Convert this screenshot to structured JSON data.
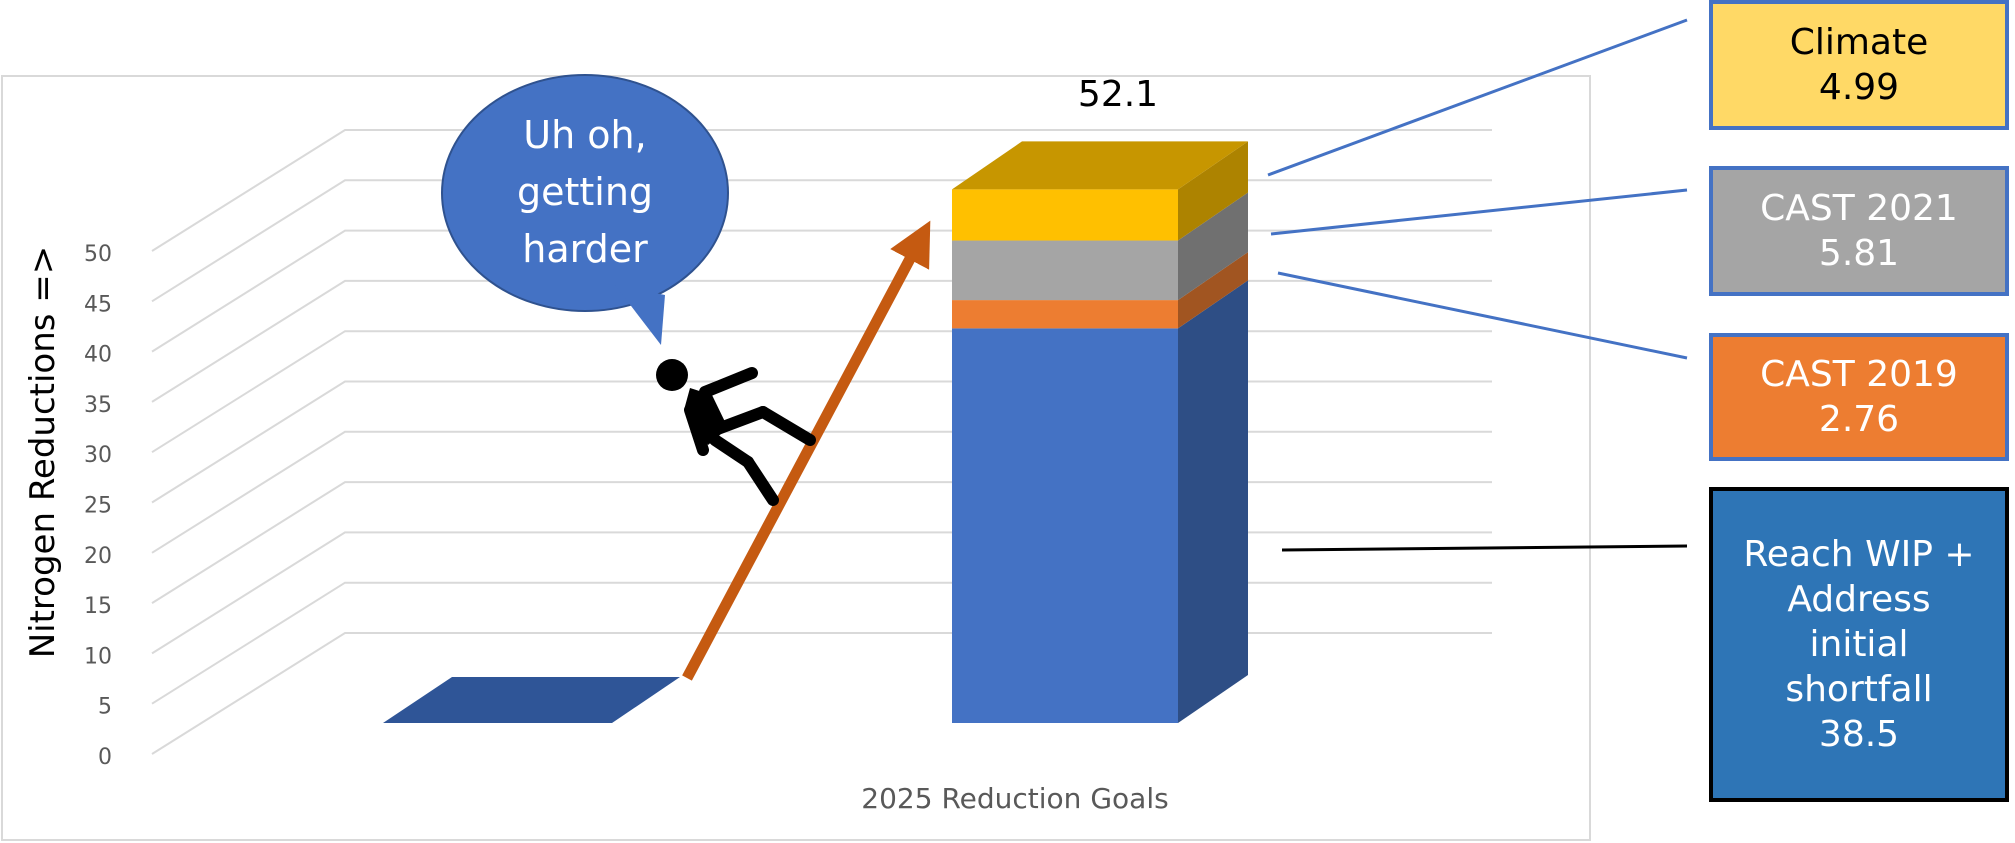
{
  "chart_data": {
    "type": "bar",
    "stacked": true,
    "three_d": true,
    "xlabel": "2025 Reduction Goals",
    "ylabel": "Nitrogen Reductions =>",
    "ylim": [
      0,
      50
    ],
    "yticks": [
      0,
      5,
      10,
      15,
      20,
      25,
      30,
      35,
      40,
      45,
      50
    ],
    "grid": true,
    "total_label": "52.1",
    "series": [
      {
        "name": "Reach WIP + Address initial shortfall",
        "value": 38.5,
        "color": "#4472c4"
      },
      {
        "name": "CAST 2019",
        "value": 2.76,
        "color": "#ed7d31"
      },
      {
        "name": "CAST 2021",
        "value": 5.81,
        "color": "#a5a5a5"
      },
      {
        "name": "Climate",
        "value": 4.99,
        "color": "#ffc000"
      }
    ]
  },
  "legend": {
    "climate": {
      "line1": "Climate",
      "line2": "4.99",
      "fill": "#ffd966",
      "border": "#4472c4",
      "text_color": "#000000"
    },
    "cast2021": {
      "line1": "CAST 2021",
      "line2": "5.81",
      "fill": "#a5a5a5",
      "border": "#4472c4",
      "text_color": "#ffffff"
    },
    "cast2019": {
      "line1": "CAST 2019",
      "line2": "2.76",
      "fill": "#ed7d31",
      "border": "#4472c4",
      "text_color": "#ffffff"
    },
    "wip": {
      "lines": [
        "Reach WIP +",
        "Address",
        "initial",
        "shortfall",
        "38.5"
      ],
      "fill": "#2e75b6",
      "border": "#000000",
      "text_color": "#ffffff"
    }
  },
  "callout": {
    "lines": [
      "Uh oh,",
      "getting",
      "harder"
    ],
    "fill": "#4472c4",
    "icon": "falling-person-icon"
  },
  "arrow": {
    "color": "#c55a11",
    "icon": "uphill-arrow"
  }
}
